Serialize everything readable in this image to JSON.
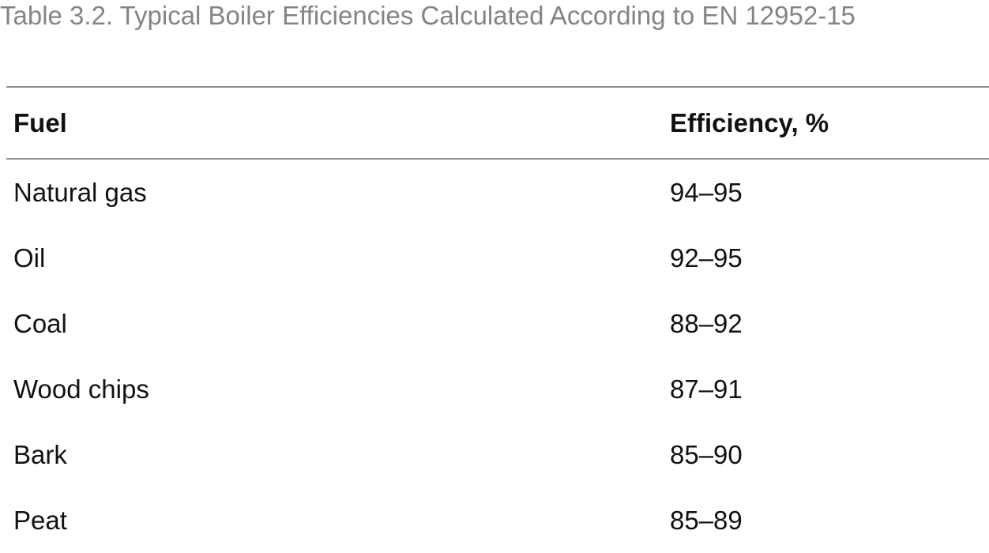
{
  "caption": "Table 3.2. Typical Boiler Efficiencies Calculated According to EN 12952-15",
  "table": {
    "headers": {
      "fuel": "Fuel",
      "efficiency": "Efficiency, %"
    },
    "rows": [
      {
        "fuel": "Natural gas",
        "efficiency": "94–95"
      },
      {
        "fuel": "Oil",
        "efficiency": "92–95"
      },
      {
        "fuel": "Coal",
        "efficiency": "88–92"
      },
      {
        "fuel": "Wood chips",
        "efficiency": "87–91"
      },
      {
        "fuel": "Bark",
        "efficiency": "85–90"
      },
      {
        "fuel": "Peat",
        "efficiency": "85–89"
      }
    ]
  }
}
